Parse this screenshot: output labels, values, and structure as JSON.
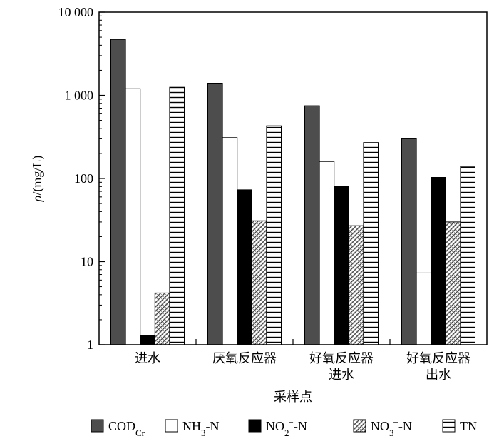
{
  "chart_data": {
    "type": "bar",
    "y_scale": "log",
    "ylim": [
      1,
      10000
    ],
    "ylabel": "ρ/(mg/L)",
    "xlabel": "采样点",
    "y_tick_labels": [
      "1",
      "10",
      "100",
      "1 000",
      "10 000"
    ],
    "y_tick_values": [
      1,
      10,
      100,
      1000,
      10000
    ],
    "categories": [
      [
        "进水"
      ],
      [
        "厌氧反应器"
      ],
      [
        "好氧反应器",
        "进水"
      ],
      [
        "好氧反应器",
        "出水"
      ]
    ],
    "series": [
      {
        "name": "CODCr",
        "legend_main": "COD",
        "legend_sub": "Cr",
        "legend_sup": "",
        "legend_tail": "",
        "style": "dark",
        "values": [
          4700,
          1400,
          750,
          300
        ]
      },
      {
        "name": "NH3-N",
        "legend_main": "NH",
        "legend_sub": "3",
        "legend_sup": "",
        "legend_tail": "-N",
        "style": "white",
        "values": [
          1200,
          310,
          160,
          7.3
        ]
      },
      {
        "name": "NO2−-N",
        "legend_main": "NO",
        "legend_sub": "2",
        "legend_sup": "−",
        "legend_tail": "-N",
        "style": "black",
        "values": [
          1.3,
          73,
          80,
          103
        ]
      },
      {
        "name": "NO3−-N",
        "legend_main": "NO",
        "legend_sub": "3",
        "legend_sup": "−",
        "legend_tail": "-N",
        "style": "diag",
        "values": [
          4.2,
          31,
          27,
          30
        ]
      },
      {
        "name": "TN",
        "legend_main": "TN",
        "legend_sub": "",
        "legend_sup": "",
        "legend_tail": "",
        "style": "hline",
        "values": [
          1250,
          430,
          270,
          140
        ]
      }
    ],
    "grid": false,
    "legend_position": "bottom"
  }
}
